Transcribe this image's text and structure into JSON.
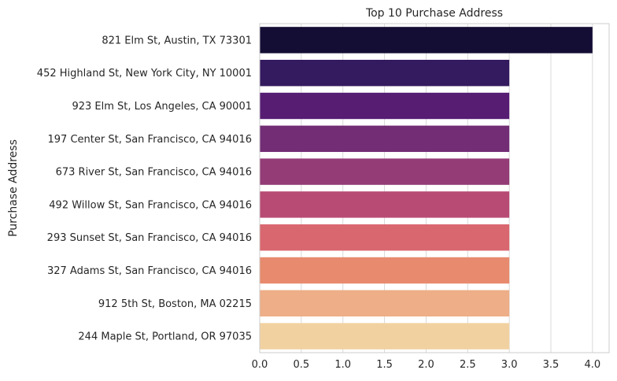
{
  "chart_data": {
    "type": "bar",
    "orientation": "horizontal",
    "title": "Top 10 Purchase Address",
    "xlabel": "",
    "ylabel": "Purchase Address",
    "categories": [
      "821 Elm St, Austin, TX 73301",
      "452 Highland St, New York City, NY 10001",
      "923 Elm St, Los Angeles, CA 90001",
      "197 Center St, San Francisco, CA 94016",
      "673 River St, San Francisco, CA 94016",
      "492 Willow St, San Francisco, CA 94016",
      "293 Sunset St, San Francisco, CA 94016",
      "327 Adams St, San Francisco, CA 94016",
      "912 5th St, Boston, MA 02215",
      "244 Maple St, Portland, OR 97035"
    ],
    "values": [
      4,
      3,
      3,
      3,
      3,
      3,
      3,
      3,
      3,
      3
    ],
    "xlim": [
      0,
      4.2
    ],
    "xticks": [
      "0.0",
      "0.5",
      "1.0",
      "1.5",
      "2.0",
      "2.5",
      "3.0",
      "3.5",
      "4.0"
    ],
    "grid": "vertical",
    "colors": [
      "#140d34",
      "#341a5f",
      "#561d73",
      "#722d75",
      "#933c76",
      "#b74b73",
      "#d9676f",
      "#e78a6d",
      "#eeae87",
      "#f2d1a1"
    ]
  }
}
